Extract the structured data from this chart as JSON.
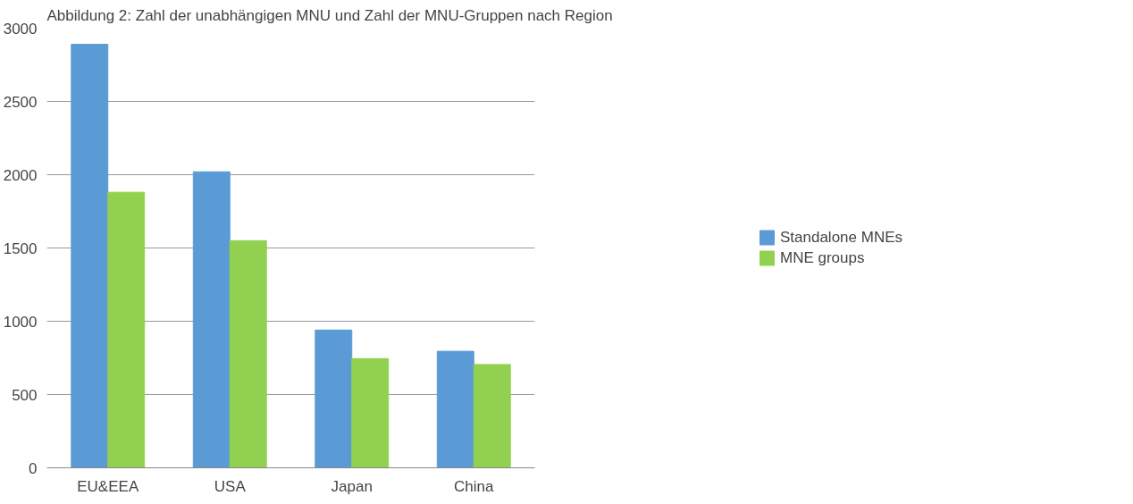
{
  "chart_data": {
    "type": "bar",
    "title": "Abbildung 2: Zahl der unabhängigen MNU und Zahl der MNU-Gruppen nach Region",
    "categories": [
      "EU&EEA",
      "USA",
      "Japan",
      "China"
    ],
    "series": [
      {
        "name": "Standalone MNEs",
        "color": "#5b9bd5",
        "values": [
          2890,
          2020,
          940,
          795
        ]
      },
      {
        "name": "MNE groups",
        "color": "#92d050",
        "values": [
          1880,
          1550,
          745,
          705
        ]
      }
    ],
    "ylim": [
      0,
      3000
    ],
    "yticks": [
      0,
      500,
      1000,
      1500,
      2000,
      2500,
      3000
    ],
    "grid": "y",
    "legend": "right"
  }
}
